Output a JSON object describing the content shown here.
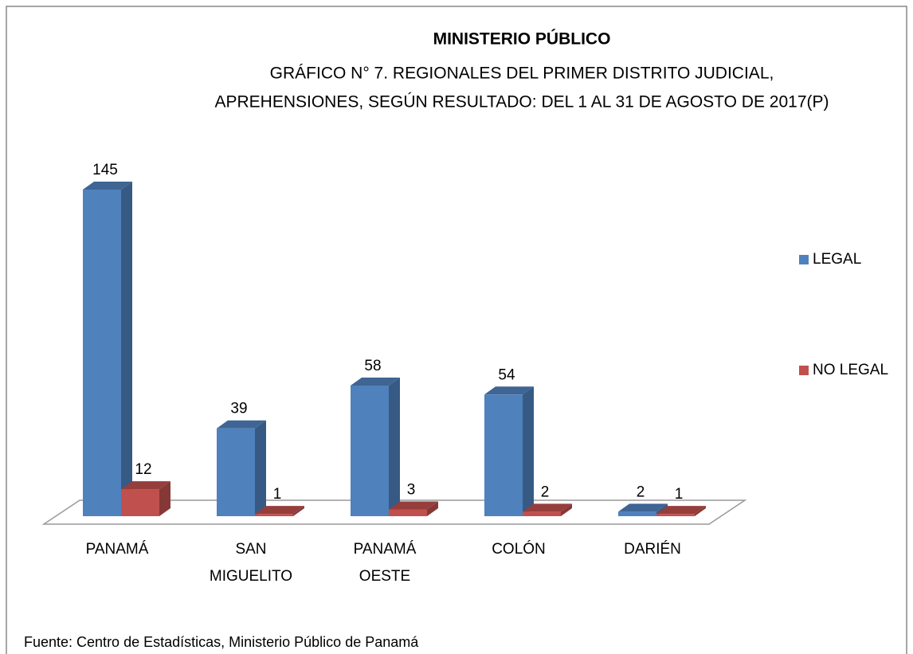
{
  "chart_data": {
    "type": "bar3d",
    "title": "MINISTERIO PÚBLICO",
    "subtitle": [
      "GRÁFICO N° 7.  REGIONALES DEL PRIMER DISTRITO JUDICIAL,",
      "APREHENSIONES, SEGÚN  RESULTADO: DEL 1 AL 31 DE AGOSTO DE 2017(P)"
    ],
    "categories": [
      "PANAMÁ",
      "SAN MIGUELITO",
      "PANAMÁ OESTE",
      "COLÓN",
      "DARIÉN"
    ],
    "series": [
      {
        "name": "LEGAL",
        "color": "#4f81bd",
        "values": [
          145,
          39,
          58,
          54,
          2
        ]
      },
      {
        "name": "NO LEGAL",
        "color": "#c0504d",
        "values": [
          12,
          1,
          3,
          2,
          1
        ]
      }
    ],
    "legend": "right",
    "source": "Fuente: Centro de Estadísticas, Ministerio Público de Panamá"
  }
}
